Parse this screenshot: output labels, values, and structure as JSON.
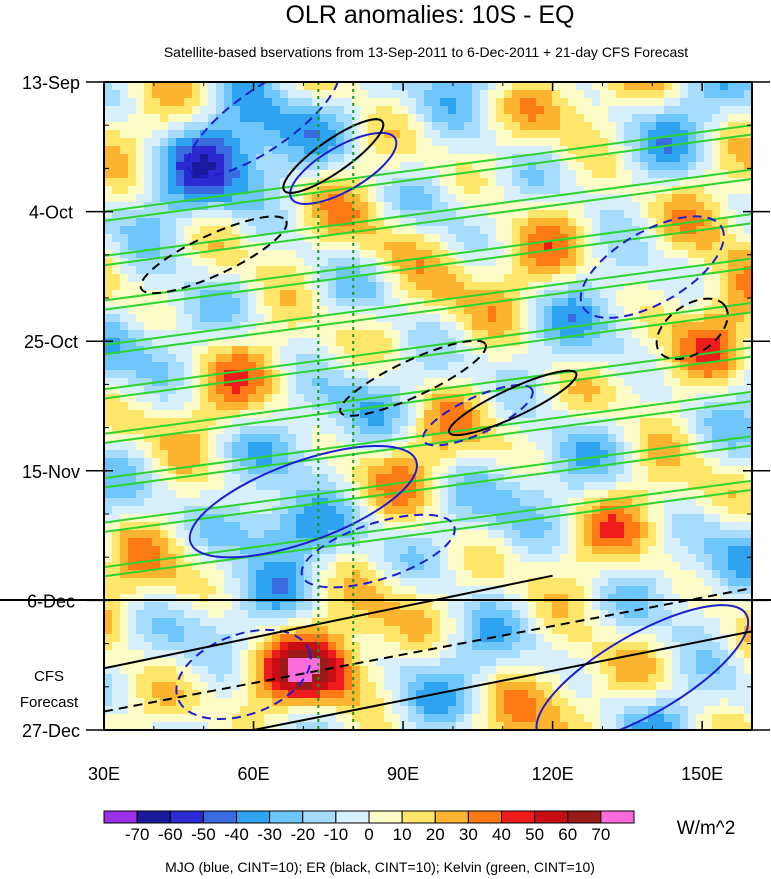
{
  "chart_data": {
    "type": "heatmap",
    "title": "OLR anomalies: 10S - EQ",
    "subtitle": "Satellite-based bservations from 13-Sep-2011 to 6-Dec-2011 + 21-day CFS Forecast",
    "x_ticks": [
      {
        "value": 30,
        "label": "30E"
      },
      {
        "value": 60,
        "label": "60E"
      },
      {
        "value": 90,
        "label": "90E"
      },
      {
        "value": 120,
        "label": "120E"
      },
      {
        "value": 150,
        "label": "150E"
      }
    ],
    "xlim": [
      30,
      160
    ],
    "y_ticks": [
      {
        "value": 0,
        "label": "13-Sep"
      },
      {
        "value": 21,
        "label": "4-Oct"
      },
      {
        "value": 42,
        "label": "25-Oct"
      },
      {
        "value": 63,
        "label": "15-Nov"
      },
      {
        "value": 84,
        "label": "6-Dec"
      },
      {
        "value": 105,
        "label": "27-Dec"
      }
    ],
    "ylim": [
      0,
      105
    ],
    "y_reversed": true,
    "forecast_start": 84,
    "forecast_label": [
      "CFS",
      "Forecast"
    ],
    "reference_lines_x": [
      73,
      80
    ],
    "colorbar": {
      "labels": [
        "-70",
        "-60",
        "-50",
        "-40",
        "-30",
        "-20",
        "-10",
        "0",
        "10",
        "20",
        "30",
        "40",
        "50",
        "60",
        "70"
      ],
      "colors": [
        "#9b30e8",
        "#1a1a9c",
        "#2a2ad0",
        "#3a6ae0",
        "#2ea3f0",
        "#6ec6fa",
        "#a8dcfc",
        "#d8f0fc",
        "#fcfcc8",
        "#fde66a",
        "#fdb430",
        "#fd7a14",
        "#ee1c1c",
        "#c80e14",
        "#9a1a1a",
        "#fd6cdc"
      ],
      "unit": "W/m^2"
    },
    "footer": "MJO (blue, CINT=10); ER (black, CINT=10); Kelvin (green, CINT=10)",
    "contour_colors": {
      "mjo": "#1f1fd0",
      "er": "#000000",
      "kelvin": "#2ed42e"
    },
    "grid": false
  }
}
